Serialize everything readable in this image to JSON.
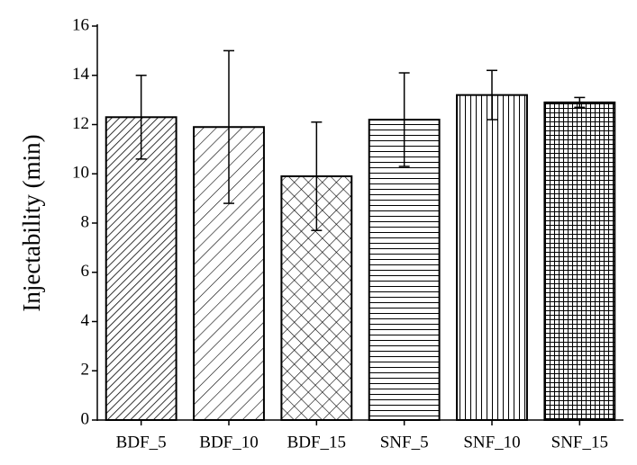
{
  "chart_data": {
    "type": "bar",
    "y_label": "Injectability (min)",
    "categories": [
      "BDF_5",
      "BDF_10",
      "BDF_15",
      "SNF_5",
      "SNF_10",
      "SNF_15"
    ],
    "values": [
      12.3,
      11.9,
      9.9,
      12.2,
      13.2,
      12.9
    ],
    "errors": [
      1.7,
      3.1,
      2.2,
      1.9,
      1.0,
      0.2
    ],
    "color": "#000000",
    "ylim": [
      0,
      16
    ],
    "yticks": [
      0,
      2,
      4,
      6,
      8,
      10,
      12,
      14,
      16
    ]
  }
}
